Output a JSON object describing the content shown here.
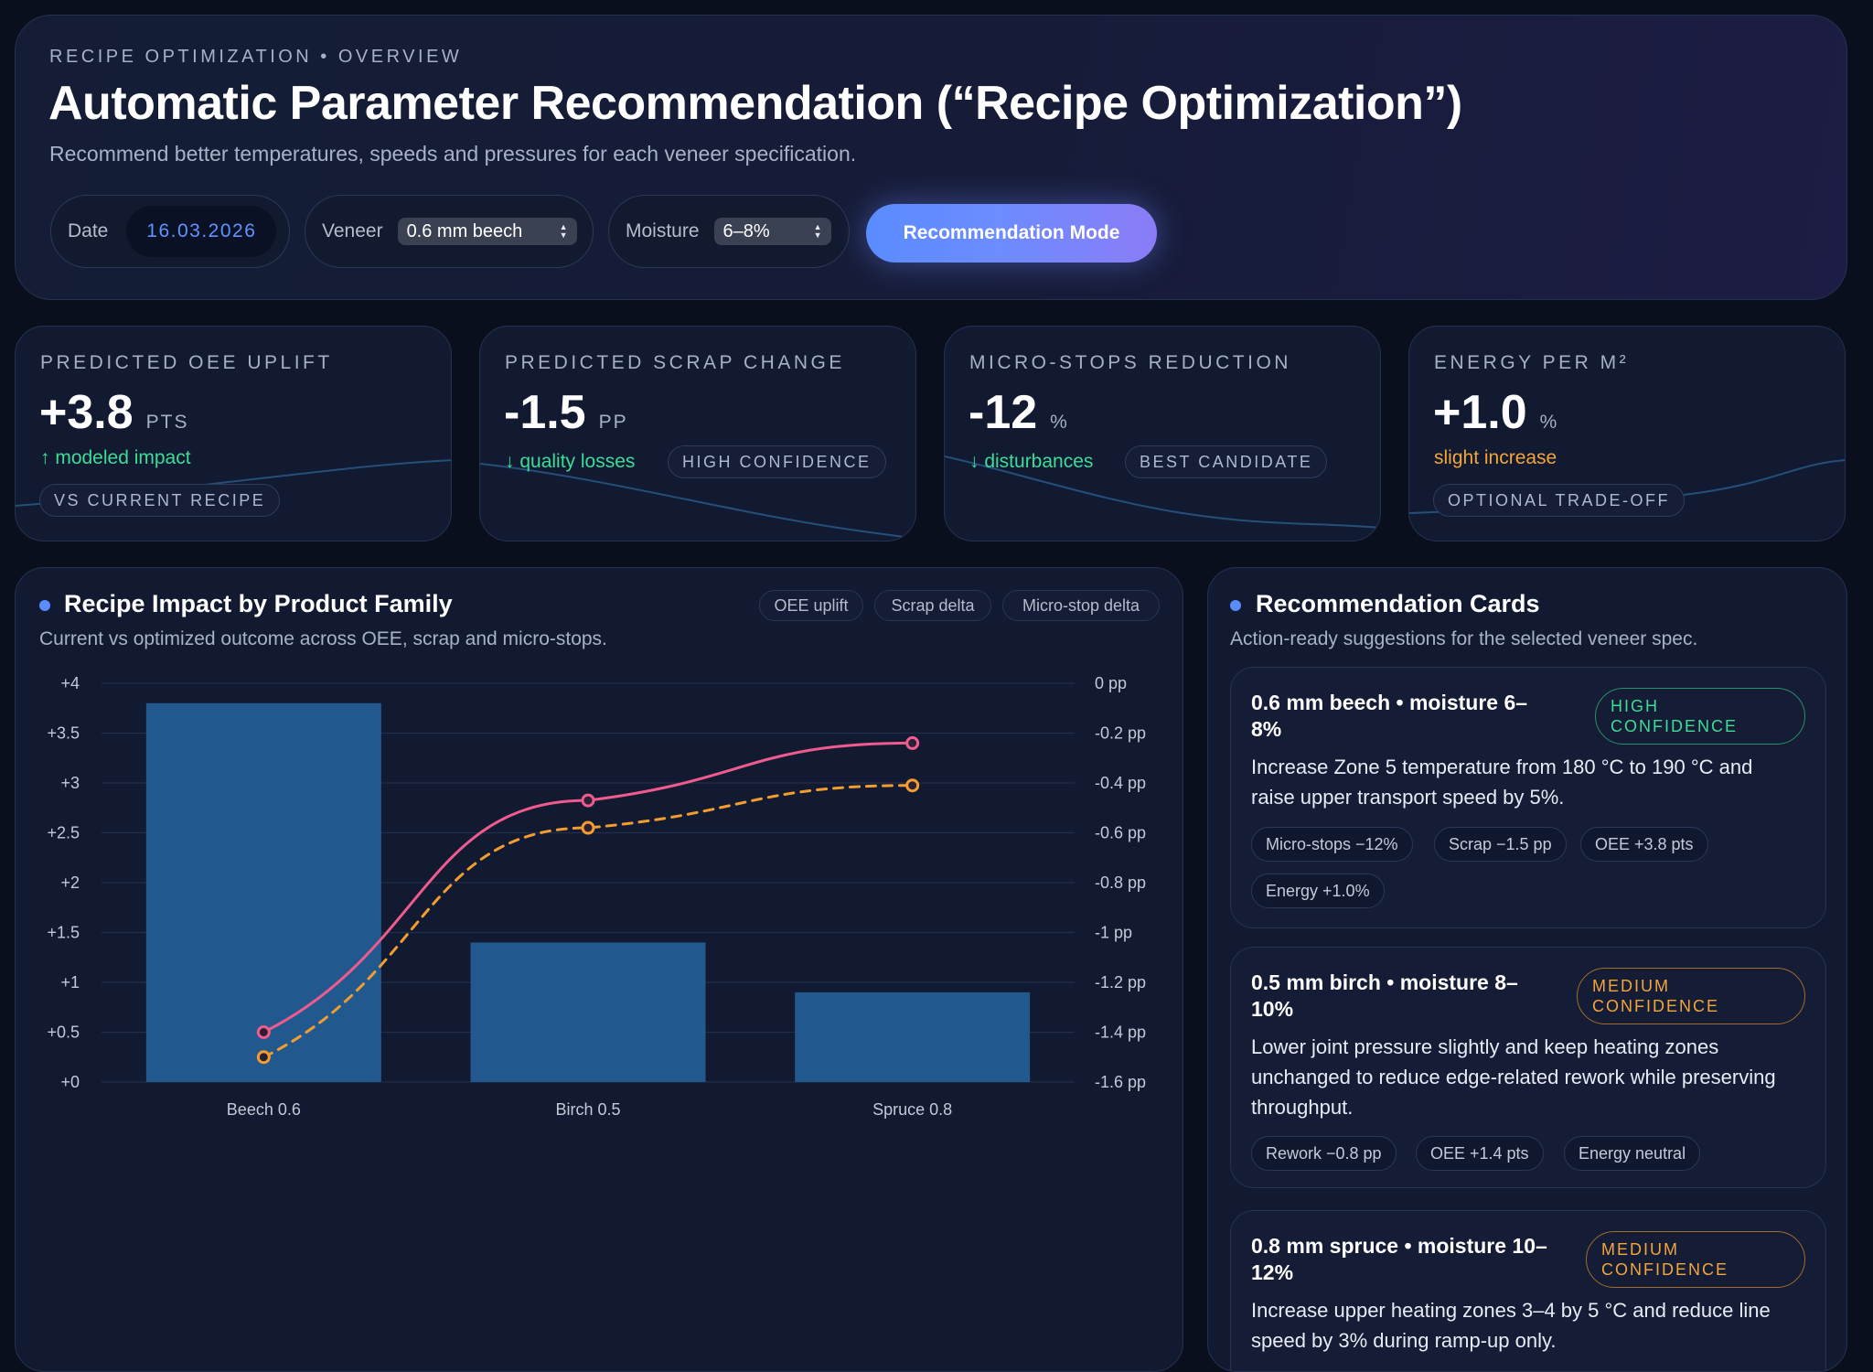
{
  "header": {
    "eyebrow": "RECIPE OPTIMIZATION • OVERVIEW",
    "title": "Automatic Parameter Recommendation (“Recipe Optimization”)",
    "subtitle": "Recommend better temperatures, speeds and pressures for each veneer specification.",
    "date_label": "Date",
    "date_value": "16.03.2026",
    "veneer_label": "Veneer",
    "veneer_value": "0.6 mm beech",
    "moisture_label": "Moisture",
    "moisture_value": "6–8%",
    "mode_button": "Recommendation Mode"
  },
  "kpis": [
    {
      "label": "PREDICTED OEE UPLIFT",
      "value": "+3.8",
      "unit": "PTS",
      "note": "↑ modeled impact",
      "note_color": "#3ddc97",
      "tag": "VS CURRENT RECIPE"
    },
    {
      "label": "PREDICTED SCRAP CHANGE",
      "value": "-1.5",
      "unit": "PP",
      "note": "↓ quality losses",
      "note_color": "#3ddc97",
      "tag": "HIGH CONFIDENCE"
    },
    {
      "label": "MICRO-STOPS REDUCTION",
      "value": "-12",
      "unit": "%",
      "note": "↓ disturbances",
      "note_color": "#3ddc97",
      "tag": "BEST CANDIDATE"
    },
    {
      "label": "ENERGY PER M²",
      "value": "+1.0",
      "unit": "%",
      "note": "slight increase",
      "note_color": "#f4a53a",
      "tag": "OPTIONAL TRADE-OFF"
    }
  ],
  "chart_panel": {
    "title": "Recipe Impact by Product Family",
    "subtitle": "Current vs optimized outcome across OEE, scrap and micro-stops.",
    "legend": [
      "OEE uplift",
      "Scrap delta",
      "Micro-stop delta"
    ]
  },
  "chart_data": {
    "type": "bar",
    "categories": [
      "Beech 0.6",
      "Birch 0.5",
      "Spruce 0.8"
    ],
    "ylim": [
      0,
      4
    ],
    "y_ticks": [
      "+0",
      "+0.5",
      "+1",
      "+1.5",
      "+2",
      "+2.5",
      "+3",
      "+3.5",
      "+4"
    ],
    "y2lim": [
      -1.6,
      0
    ],
    "y2_ticks": [
      "-1.6 pp",
      "-1.4 pp",
      "-1.2 pp",
      "-1 pp",
      "-0.8 pp",
      "-0.6 pp",
      "-0.4 pp",
      "-0.2 pp",
      "0 pp"
    ],
    "series": [
      {
        "name": "OEE uplift",
        "type": "bar",
        "axis": "left",
        "values": [
          3.8,
          1.4,
          0.9
        ],
        "color": "#235d96"
      },
      {
        "name": "Scrap delta",
        "type": "line",
        "axis": "right",
        "values": [
          -1.5,
          -0.58,
          -0.41
        ],
        "color": "#f39c2f",
        "dashed": true
      },
      {
        "name": "Micro-stop delta",
        "type": "line",
        "axis": "right",
        "values": [
          -1.4,
          -0.47,
          -0.24
        ],
        "color": "#ef5b8c",
        "dashed": false
      }
    ],
    "grid": true
  },
  "recs_panel": {
    "title": "Recommendation Cards",
    "subtitle": "Action-ready suggestions for the selected veneer spec.",
    "cards": [
      {
        "title_line1": "0.6 mm beech • moisture 6–",
        "title_line2": "8%",
        "confidence_line1": "HIGH",
        "confidence_line2": "CONFIDENCE",
        "body": "Increase Zone 5 temperature from 180 °C to 190 °C and raise upper transport speed by 5%.",
        "chips": [
          "Micro-stops −12%",
          "Scrap −1.5 pp",
          "OEE +3.8 pts",
          "Energy +1.0%"
        ]
      },
      {
        "title_line1": "0.5 mm birch • moisture 8–",
        "title_line2": "10%",
        "confidence_line1": "MEDIUM",
        "confidence_line2": "CONFIDENCE",
        "body": "Lower joint pressure slightly and keep heating zones unchanged to reduce edge-related rework while preserving throughput.",
        "chips": [
          "Rework −0.8 pp",
          "OEE +1.4 pts",
          "Energy neutral"
        ]
      },
      {
        "title_line1": "0.8 mm spruce • moisture 10–",
        "title_line2": "12%",
        "confidence_line1": "MEDIUM",
        "confidence_line2": "CONFIDENCE",
        "body": "Increase upper heating zones 3–4 by 5 °C and reduce line speed by 3% during ramp-up only.",
        "chips": []
      }
    ]
  }
}
